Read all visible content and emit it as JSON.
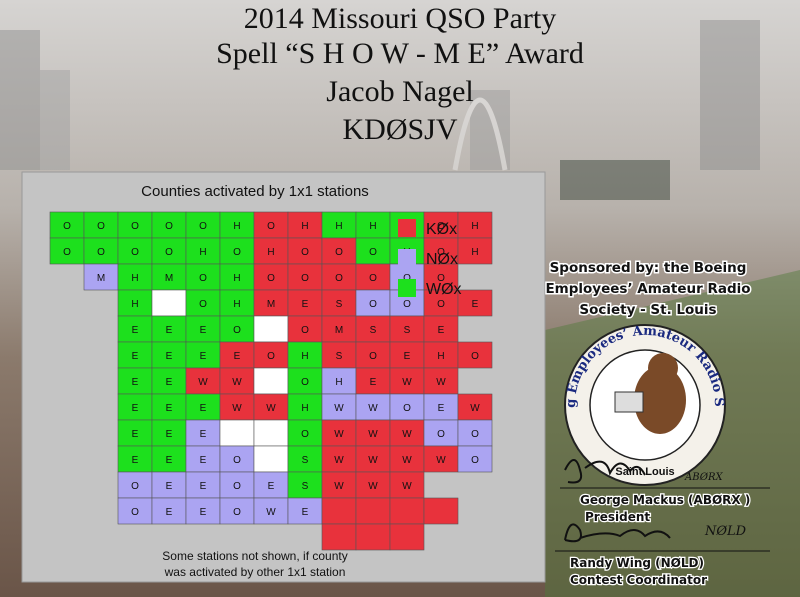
{
  "header": {
    "lines": [
      "2014 Missouri QSO Party",
      "Spell “S H O W - M E” Award",
      "Jacob Nagel",
      "KDØSJV"
    ]
  },
  "map": {
    "title": "Counties activated by 1x1 stations",
    "legend": [
      {
        "label": "KØx",
        "color": "#e8323c",
        "counties": [
          "O",
          "H",
          "O",
          "H",
          "H",
          "O",
          "O",
          "O",
          "H",
          "O",
          "O",
          "O",
          "O",
          "O",
          "M",
          "E",
          "S",
          "O",
          "E",
          "O",
          "M",
          "S",
          "S",
          "E",
          "E",
          "O",
          "S",
          "O",
          "E",
          "H",
          "O",
          "W",
          "W",
          "E",
          "W",
          "W",
          "W",
          "W",
          "W",
          "W",
          "W",
          "W",
          "W",
          "W",
          "W",
          "W",
          "W",
          "W",
          "W"
        ]
      },
      {
        "label": "NØx",
        "color": "#aba4f2",
        "counties": [
          "M",
          "O",
          "O",
          "O",
          "H",
          "W",
          "W",
          "O",
          "E",
          "E",
          "O",
          "O",
          "E",
          "O",
          "O",
          "O",
          "E",
          "E",
          "O",
          "E",
          "O",
          "E",
          "E",
          "O",
          "W",
          "E"
        ]
      },
      {
        "label": "WØx",
        "color": "#1de01d",
        "counties": [
          "O",
          "O",
          "O",
          "O",
          "O",
          "H",
          "H",
          "H",
          "H",
          "O",
          "O",
          "O",
          "O",
          "H",
          "O",
          "O",
          "H",
          "H",
          "M",
          "O",
          "H",
          "H",
          "O",
          "H",
          "E",
          "E",
          "E",
          "O",
          "E",
          "E",
          "E",
          "H",
          "E",
          "E",
          "O",
          "E",
          "E",
          "E",
          "H",
          "E",
          "E",
          "O",
          "E",
          "E",
          "S",
          "S"
        ]
      }
    ],
    "caption": [
      "Some stations not shown, if county",
      "was activated by other 1x1 station"
    ]
  },
  "sponsor": {
    "lines": [
      "Sponsored by: the Boeing",
      "Employees’ Amateur Radio",
      "Society - St. Louis"
    ]
  },
  "logo": {
    "ring": "Boeing Employees’ Amateur Radio Society",
    "bottom": "Saint Louis"
  },
  "signatures": [
    {
      "mark": "ABØRX",
      "name": "George Mackus (ABØRX )",
      "role": "President"
    },
    {
      "mark": "NØLD",
      "name": "Randy Wing (NØLD)",
      "role": "Contest Coordinator"
    }
  ]
}
